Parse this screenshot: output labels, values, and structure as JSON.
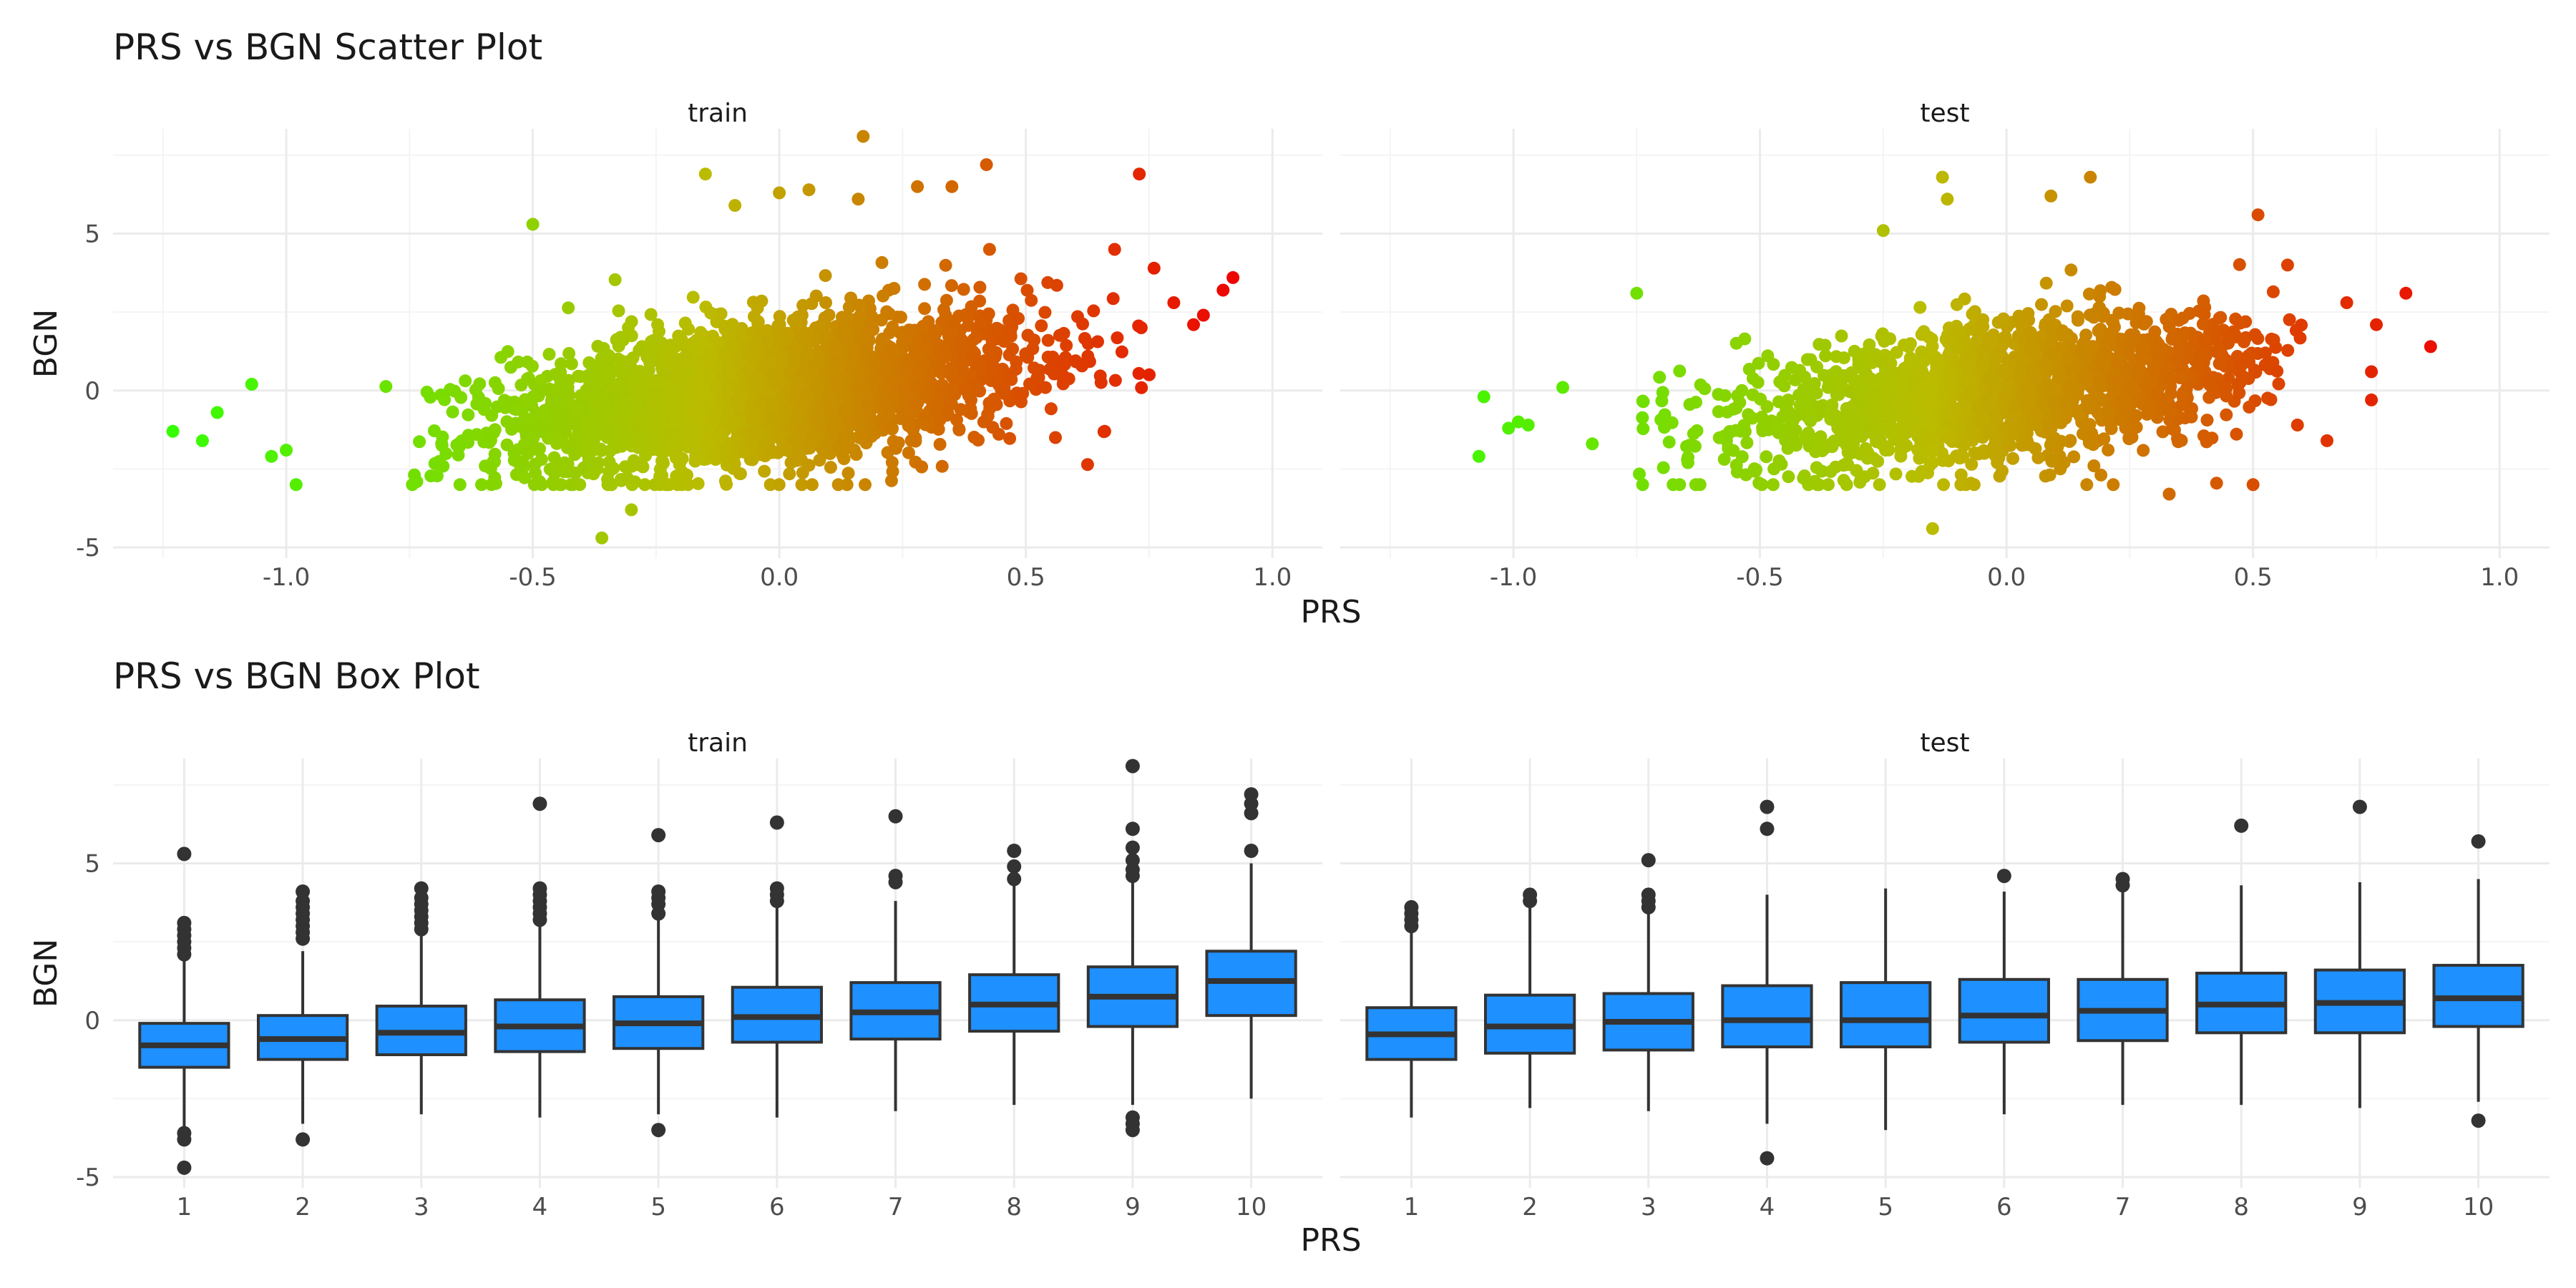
{
  "colors": {
    "background": "#ffffff",
    "grid_major": "#ebebeb",
    "grid_minor": "#f4f4f4",
    "box_fill": "#1e90ff",
    "box_line": "#333333",
    "outlier": "#333333",
    "gradient_low": "#33ff00",
    "gradient_mid": "#bbbb00",
    "gradient_high": "#ee0000"
  },
  "chart_data": [
    {
      "type": "scatter",
      "title": "PRS vs BGN Scatter Plot",
      "xlabel": "PRS",
      "ylabel": "BGN",
      "facets": [
        "train",
        "test"
      ],
      "xlim": [
        -1.25,
        1.0
      ],
      "ylim": [
        -5,
        8
      ],
      "xticks": [
        -1.0,
        -0.5,
        0.0,
        0.5,
        1.0
      ],
      "xtick_labels": [
        "-1.0",
        "-0.5",
        "0.0",
        "0.5",
        "1.0"
      ],
      "yticks": [
        -5,
        0,
        5
      ],
      "ytick_labels": [
        "-5",
        "0",
        "5"
      ],
      "grid": true,
      "color_by": "PRS",
      "trend": {
        "slope": 2.0
      },
      "bulk": {
        "train": {
          "x_range": [
            -0.8,
            0.75
          ],
          "y_range": [
            -3.0,
            4.5
          ],
          "y_sd": 1.15
        },
        "test": {
          "x_range": [
            -0.75,
            0.6
          ],
          "y_range": [
            -3.0,
            4.5
          ],
          "y_sd": 1.1
        }
      },
      "outliers": {
        "train": [
          [
            -1.23,
            -1.3
          ],
          [
            -1.17,
            -1.6
          ],
          [
            -1.14,
            -0.7
          ],
          [
            -1.07,
            0.2
          ],
          [
            -1.03,
            -2.1
          ],
          [
            -1.0,
            -1.9
          ],
          [
            -0.98,
            -3.0
          ],
          [
            -0.36,
            -4.7
          ],
          [
            -0.5,
            5.3
          ],
          [
            -0.3,
            -3.8
          ],
          [
            -0.15,
            6.9
          ],
          [
            -0.09,
            5.9
          ],
          [
            0.0,
            6.3
          ],
          [
            0.06,
            6.4
          ],
          [
            0.17,
            8.1
          ],
          [
            0.16,
            6.1
          ],
          [
            0.28,
            6.5
          ],
          [
            0.35,
            6.5
          ],
          [
            0.42,
            7.2
          ],
          [
            0.73,
            6.9
          ],
          [
            0.68,
            4.5
          ],
          [
            0.76,
            3.9
          ],
          [
            0.8,
            2.8
          ],
          [
            0.84,
            2.1
          ],
          [
            0.86,
            2.4
          ],
          [
            0.9,
            3.2
          ],
          [
            0.92,
            3.6
          ],
          [
            0.75,
            0.5
          ],
          [
            0.56,
            -1.5
          ],
          [
            0.66,
            -1.3
          ]
        ],
        "test": [
          [
            -1.07,
            -2.1
          ],
          [
            -1.06,
            -0.2
          ],
          [
            -1.01,
            -1.2
          ],
          [
            -0.99,
            -1.0
          ],
          [
            -0.97,
            -1.1
          ],
          [
            -0.9,
            0.1
          ],
          [
            -0.84,
            -1.7
          ],
          [
            -0.75,
            3.1
          ],
          [
            -0.25,
            5.1
          ],
          [
            -0.13,
            6.8
          ],
          [
            -0.12,
            6.1
          ],
          [
            0.09,
            6.2
          ],
          [
            0.17,
            6.8
          ],
          [
            0.51,
            5.6
          ],
          [
            -0.15,
            -4.4
          ],
          [
            0.33,
            -3.3
          ],
          [
            0.5,
            -3.0
          ],
          [
            0.57,
            4.0
          ],
          [
            0.69,
            2.8
          ],
          [
            0.75,
            2.1
          ],
          [
            0.81,
            3.1
          ],
          [
            0.86,
            1.4
          ],
          [
            0.74,
            -0.3
          ],
          [
            0.74,
            0.6
          ],
          [
            0.65,
            -1.6
          ],
          [
            0.59,
            -1.1
          ]
        ]
      }
    },
    {
      "type": "box",
      "title": "PRS vs BGN Box Plot",
      "xlabel": "PRS",
      "ylabel": "BGN",
      "facets": [
        "train",
        "test"
      ],
      "categories": [
        "1",
        "2",
        "3",
        "4",
        "5",
        "6",
        "7",
        "8",
        "9",
        "10"
      ],
      "ylim": [
        -5,
        8
      ],
      "yticks": [
        -5,
        0,
        5
      ],
      "ytick_labels": [
        "-5",
        "0",
        "5"
      ],
      "grid": true,
      "series": [
        {
          "facet": "train",
          "boxes": [
            {
              "q1": -1.5,
              "median": -0.8,
              "q3": -0.1,
              "whisker_low": -3.4,
              "whisker_high": 1.9,
              "outliers": [
                5.3,
                3.1,
                2.9,
                2.7,
                2.5,
                2.3,
                2.1,
                -3.6,
                -3.8,
                -4.7
              ]
            },
            {
              "q1": -1.25,
              "median": -0.6,
              "q3": 0.15,
              "whisker_low": -3.3,
              "whisker_high": 2.2,
              "outliers": [
                4.1,
                3.8,
                3.6,
                3.4,
                3.2,
                3.0,
                2.8,
                2.6,
                -3.8
              ]
            },
            {
              "q1": -1.1,
              "median": -0.4,
              "q3": 0.45,
              "whisker_low": -3.0,
              "whisker_high": 2.7,
              "outliers": [
                4.2,
                3.9,
                3.7,
                3.5,
                3.3,
                3.1,
                2.9
              ]
            },
            {
              "q1": -1.0,
              "median": -0.2,
              "q3": 0.65,
              "whisker_low": -3.1,
              "whisker_high": 3.1,
              "outliers": [
                6.9,
                4.2,
                4.0,
                3.8,
                3.6,
                3.4,
                3.2
              ]
            },
            {
              "q1": -0.9,
              "median": -0.1,
              "q3": 0.75,
              "whisker_low": -3.0,
              "whisker_high": 3.2,
              "outliers": [
                5.9,
                4.1,
                3.9,
                3.7,
                3.4,
                -3.5
              ]
            },
            {
              "q1": -0.7,
              "median": 0.1,
              "q3": 1.05,
              "whisker_low": -3.1,
              "whisker_high": 3.6,
              "outliers": [
                6.3,
                4.2,
                4.0,
                3.8
              ]
            },
            {
              "q1": -0.6,
              "median": 0.25,
              "q3": 1.2,
              "whisker_low": -2.9,
              "whisker_high": 3.8,
              "outliers": [
                6.5,
                4.6,
                4.4
              ]
            },
            {
              "q1": -0.35,
              "median": 0.5,
              "q3": 1.45,
              "whisker_low": -2.7,
              "whisker_high": 4.3,
              "outliers": [
                5.4,
                4.9,
                4.5
              ]
            },
            {
              "q1": -0.2,
              "median": 0.75,
              "q3": 1.7,
              "whisker_low": -2.7,
              "whisker_high": 4.5,
              "outliers": [
                8.1,
                6.1,
                5.5,
                5.1,
                4.8,
                4.6,
                -3.1,
                -3.3,
                -3.5
              ]
            },
            {
              "q1": 0.15,
              "median": 1.25,
              "q3": 2.2,
              "whisker_low": -2.5,
              "whisker_high": 5.0,
              "outliers": [
                7.2,
                6.9,
                6.6,
                5.4
              ]
            }
          ]
        },
        {
          "facet": "test",
          "boxes": [
            {
              "q1": -1.25,
              "median": -0.45,
              "q3": 0.4,
              "whisker_low": -3.1,
              "whisker_high": 2.8,
              "outliers": [
                3.6,
                3.4,
                3.2,
                3.0
              ]
            },
            {
              "q1": -1.05,
              "median": -0.2,
              "q3": 0.8,
              "whisker_low": -2.8,
              "whisker_high": 3.6,
              "outliers": [
                4.0,
                3.8
              ]
            },
            {
              "q1": -0.95,
              "median": -0.05,
              "q3": 0.85,
              "whisker_low": -2.9,
              "whisker_high": 3.5,
              "outliers": [
                5.1,
                4.0,
                3.8,
                3.6
              ]
            },
            {
              "q1": -0.85,
              "median": 0.0,
              "q3": 1.1,
              "whisker_low": -3.3,
              "whisker_high": 4.0,
              "outliers": [
                6.8,
                6.1,
                -4.4
              ]
            },
            {
              "q1": -0.85,
              "median": 0.0,
              "q3": 1.2,
              "whisker_low": -3.5,
              "whisker_high": 4.2,
              "outliers": []
            },
            {
              "q1": -0.7,
              "median": 0.15,
              "q3": 1.3,
              "whisker_low": -3.0,
              "whisker_high": 4.1,
              "outliers": [
                4.6
              ]
            },
            {
              "q1": -0.65,
              "median": 0.3,
              "q3": 1.3,
              "whisker_low": -2.7,
              "whisker_high": 4.1,
              "outliers": [
                4.5,
                4.3
              ]
            },
            {
              "q1": -0.4,
              "median": 0.5,
              "q3": 1.5,
              "whisker_low": -2.7,
              "whisker_high": 4.3,
              "outliers": [
                6.2
              ]
            },
            {
              "q1": -0.4,
              "median": 0.55,
              "q3": 1.6,
              "whisker_low": -2.8,
              "whisker_high": 4.4,
              "outliers": [
                6.8
              ]
            },
            {
              "q1": -0.2,
              "median": 0.7,
              "q3": 1.75,
              "whisker_low": -2.6,
              "whisker_high": 4.5,
              "outliers": [
                5.7,
                -3.2
              ]
            }
          ]
        }
      ]
    }
  ]
}
